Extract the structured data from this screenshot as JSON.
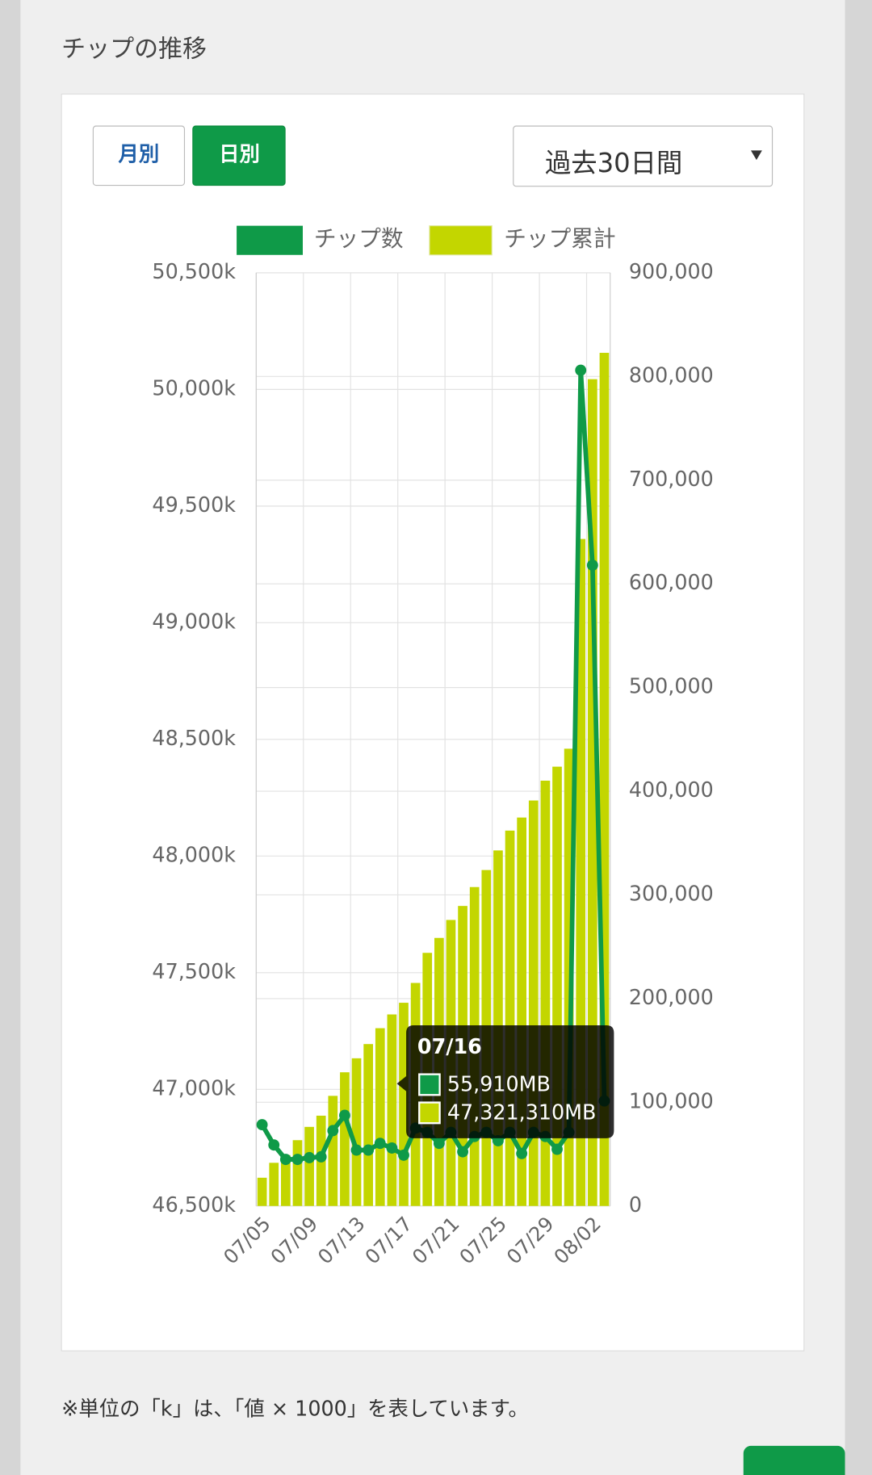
{
  "header": {
    "title": "チップの推移"
  },
  "controls": {
    "monthly": "月別",
    "daily": "日別",
    "period": "過去30日間"
  },
  "footnote": "※単位の「k」は、「値 × 1000」を表しています。",
  "chart_data": {
    "type": "bar",
    "categories": [
      "07/05",
      null,
      null,
      null,
      "07/09",
      null,
      null,
      null,
      "07/13",
      null,
      null,
      null,
      "07/17",
      null,
      null,
      null,
      "07/21",
      null,
      null,
      null,
      "07/25",
      null,
      null,
      null,
      "07/29",
      null,
      null,
      null,
      "08/02",
      null
    ],
    "series": [
      {
        "name": "チップ数",
        "type": "line",
        "axis": "y2",
        "color": "#0f9a48",
        "values": [
          78400,
          58800,
          44900,
          44900,
          46600,
          47400,
          72700,
          87400,
          53900,
          53900,
          60400,
          55910,
          49000,
          75100,
          71000,
          60400,
          71000,
          52300,
          67000,
          71000,
          62900,
          71000,
          50600,
          71000,
          67000,
          54700,
          71000,
          806000,
          618000,
          101300
        ]
      },
      {
        "name": "チップ累計",
        "type": "bar",
        "color": "#c3d600",
        "values": [
          46621,
          46685,
          46718,
          46782,
          46839,
          46887,
          46972,
          47073,
          47133,
          47194,
          47262,
          47321,
          47371,
          47456,
          47585,
          47649,
          47726,
          47786,
          47867,
          47940,
          48024,
          48109,
          48165,
          48238,
          48323,
          48383,
          48460,
          49359,
          50044,
          50157
        ]
      }
    ],
    "ylim": [
      46500,
      50500
    ],
    "yticks": [
      {
        "value": 46500,
        "label": "46,500k"
      },
      {
        "value": 47000,
        "label": "47,000k"
      },
      {
        "value": 47500,
        "label": "47,500k"
      },
      {
        "value": 48000,
        "label": "48,000k"
      },
      {
        "value": 48500,
        "label": "48,500k"
      },
      {
        "value": 49000,
        "label": "49,000k"
      },
      {
        "value": 49500,
        "label": "49,500k"
      },
      {
        "value": 50000,
        "label": "50,000k"
      },
      {
        "value": 50500,
        "label": "50,500k"
      }
    ],
    "y2lim": [
      0,
      900000
    ],
    "y2ticks": [
      0,
      {
        "value": 100000,
        "label": "100,000"
      },
      {
        "value": 200000,
        "label": "200,000"
      },
      {
        "value": 300000,
        "label": "300,000"
      },
      {
        "value": 400000,
        "label": "400,000"
      },
      {
        "value": 500000,
        "label": "500,000"
      },
      {
        "value": 600000,
        "label": "600,000"
      },
      {
        "value": 700000,
        "label": "700,000"
      },
      {
        "value": 800000,
        "label": "800,000"
      },
      {
        "value": 900000,
        "label": "900,000"
      }
    ],
    "grid": true,
    "tooltip": {
      "title": "07/16",
      "lines": [
        "55,910MB",
        "47,321,310MB"
      ]
    }
  }
}
